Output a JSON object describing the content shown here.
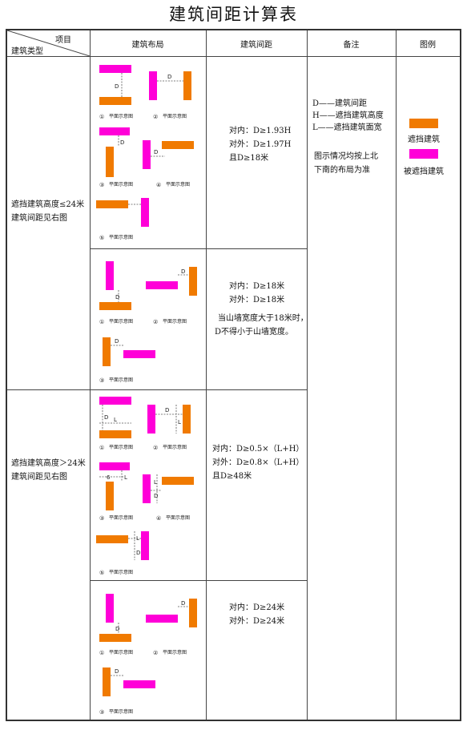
{
  "title": "建筑间距计算表",
  "header": {
    "corner_top": "项目",
    "corner_bottom": "建筑类型",
    "layout": "建筑布局",
    "spacing": "建筑间距",
    "remark": "备注",
    "legend": "图例"
  },
  "diagram_labels": {
    "d": "D",
    "l": "L",
    "num_6": "6",
    "n1": "①",
    "n2": "②",
    "n3": "③",
    "n4": "④",
    "n5": "⑤",
    "caption": "平面示意图"
  },
  "sections": [
    {
      "type_label": [
        "遮挡建筑高度≤24米",
        "建筑间距见右图"
      ],
      "rows": [
        {
          "spacing": [
            "对内：D≥1.93H",
            "对外：D≥1.97H",
            "且D≥18米"
          ]
        },
        {
          "spacing": [
            "对内：D≥18米",
            "对外：D≥18米",
            "当山墙宽度大于18米时，",
            "D不得小于山墙宽度。"
          ]
        }
      ]
    },
    {
      "type_label": [
        "遮挡建筑高度＞24米",
        "建筑间距见右图"
      ],
      "rows": [
        {
          "spacing": [
            "对内：D≥0.5×（L+H）",
            "对外：D≥0.8×（L+H）",
            "且D≥48米"
          ]
        },
        {
          "spacing": [
            "对内：D≥24米",
            "对外：D≥24米"
          ]
        }
      ]
    }
  ],
  "remark": {
    "lines": [
      "D——建筑间距",
      "H——遮挡建筑高度",
      "L——遮挡建筑面宽"
    ],
    "note": [
      "图示情况均按上北",
      "下南的布局为准"
    ]
  },
  "legend": {
    "blocking": {
      "label": "遮挡建筑",
      "color": "#f07a00"
    },
    "blocked": {
      "label": "被遮挡建筑",
      "color": "#ff00d8"
    }
  }
}
